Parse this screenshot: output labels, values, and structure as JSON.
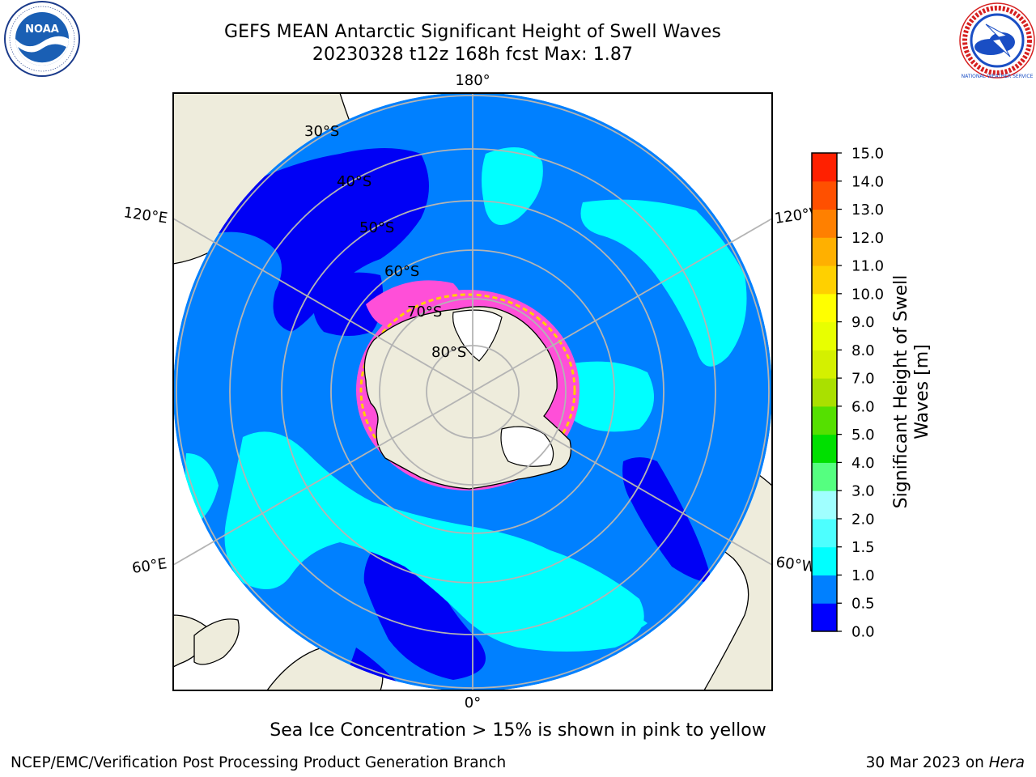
{
  "title": {
    "line1": "GEFS MEAN Antarctic Significant Height of Swell Waves",
    "line2": "20230328 t12z 168h fcst   Max: 1.87"
  },
  "map": {
    "projection": "south-polar-stereographic",
    "longitude_labels": [
      "180°",
      "120°E",
      "120°W",
      "60°E",
      "60°W",
      "0°"
    ],
    "latitude_labels": [
      "30°S",
      "40°S",
      "50°S",
      "60°S",
      "70°S",
      "80°S"
    ],
    "colors": {
      "land": "#eeecdc",
      "coastline": "#000000",
      "gridlines": "#b4b4b4",
      "swell_0_0p5": "#0000f5",
      "swell_0p5_1": "#0080ff",
      "swell_1_1p5": "#00ffff",
      "sea_ice": "#ff4fd8",
      "sea_ice_edge": "#ffd000",
      "ice_shelf": "#ffffff"
    }
  },
  "colorbar": {
    "label_line1": "Significant Height of Swell",
    "label_line2": "Waves [m]",
    "ticks": [
      "0.0",
      "0.5",
      "1.0",
      "1.5",
      "2.0",
      "3.0",
      "4.0",
      "5.0",
      "6.0",
      "7.0",
      "8.0",
      "9.0",
      "10.0",
      "11.0",
      "12.0",
      "13.0",
      "14.0",
      "15.0"
    ],
    "colors": [
      "#0000ff",
      "#0080ff",
      "#00ffff",
      "#4dffff",
      "#a0ffff",
      "#55ff80",
      "#00e000",
      "#55e000",
      "#aae000",
      "#d4f000",
      "#e8ff00",
      "#ffff00",
      "#ffd000",
      "#ffb000",
      "#ff8000",
      "#ff5000",
      "#ff2000"
    ]
  },
  "footer": {
    "note": "Sea Ice Concentration > 15% is shown in pink to yellow",
    "credit": "NCEP/EMC/Verification Post Processing Product Generation Branch",
    "date": "30 Mar 2023",
    "date_joiner": " on ",
    "host": "Hera"
  },
  "logos": {
    "noaa_text": "NOAA",
    "nws_text": "NATIONAL WEATHER SERVICE"
  }
}
